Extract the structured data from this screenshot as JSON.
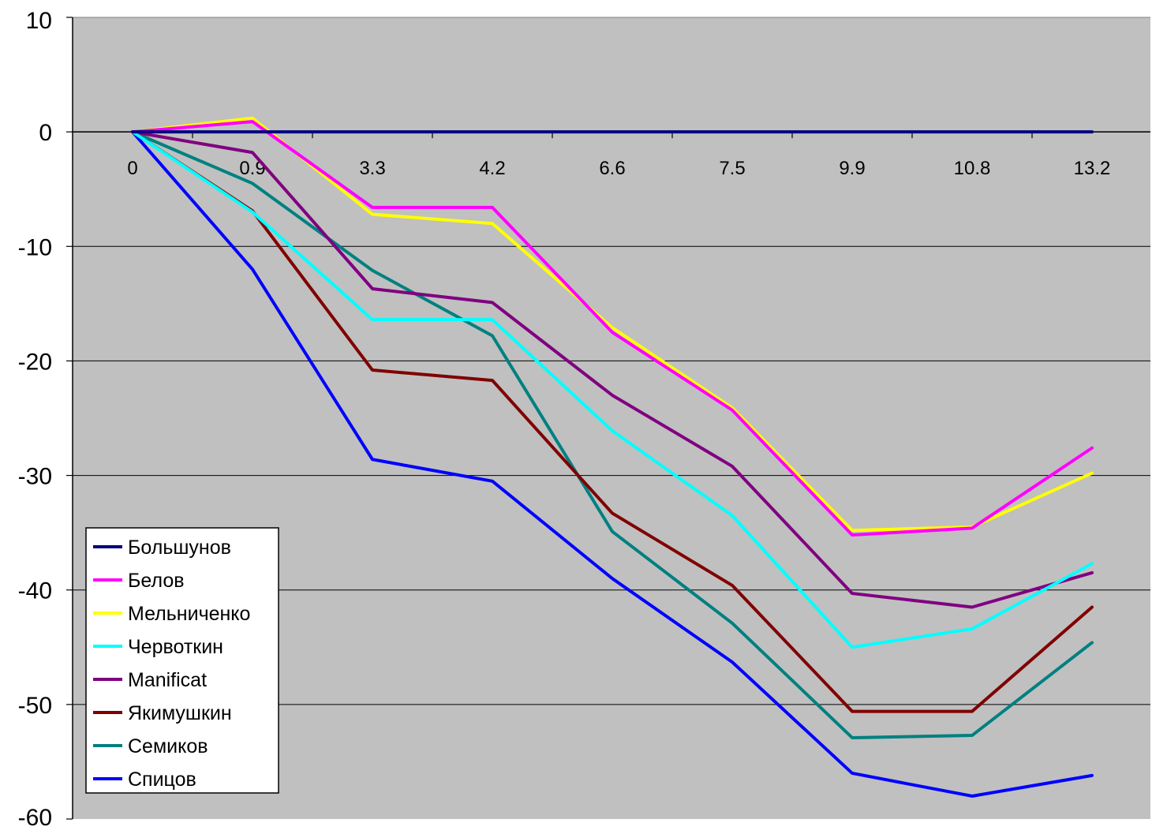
{
  "chart_data": {
    "type": "line",
    "title": "",
    "xlabel": "",
    "ylabel": "",
    "categories": [
      "0",
      "0.9",
      "3.3",
      "4.2",
      "6.6",
      "7.5",
      "9.9",
      "10.8",
      "13.2"
    ],
    "ylim": [
      -60,
      10
    ],
    "yticks": [
      10,
      0,
      -10,
      -20,
      -30,
      -40,
      -50,
      -60
    ],
    "grid": true,
    "legend_position": "bottom-left",
    "plot_background": "#C0C0C0",
    "series": [
      {
        "name": "Большунов",
        "color": "#000080",
        "values": [
          0,
          0,
          0,
          0,
          0,
          0,
          0,
          0,
          0
        ]
      },
      {
        "name": "Белов",
        "color": "#FF00FF",
        "values": [
          0,
          0.9,
          -6.6,
          -6.6,
          -17.5,
          -24.3,
          -35.2,
          -34.6,
          -27.6
        ]
      },
      {
        "name": "Мельниченко",
        "color": "#FFFF00",
        "values": [
          0,
          1.2,
          -7.2,
          -8.0,
          -17.1,
          -24.1,
          -34.8,
          -34.5,
          -29.8
        ]
      },
      {
        "name": "Червоткин",
        "color": "#00FFFF",
        "values": [
          0,
          -7.0,
          -16.4,
          -16.4,
          -26.1,
          -33.5,
          -45.0,
          -43.4,
          -37.7
        ]
      },
      {
        "name": "Manificat",
        "color": "#800080",
        "values": [
          0,
          -1.8,
          -13.7,
          -14.9,
          -23.0,
          -29.2,
          -40.3,
          -41.5,
          -38.5
        ]
      },
      {
        "name": "Якимушкин",
        "color": "#800000",
        "values": [
          0,
          -6.9,
          -20.8,
          -21.7,
          -33.3,
          -39.6,
          -50.6,
          -50.6,
          -41.5
        ]
      },
      {
        "name": "Семиков",
        "color": "#008080",
        "values": [
          0,
          -4.5,
          -12.1,
          -17.8,
          -34.9,
          -42.9,
          -52.9,
          -52.7,
          -44.6
        ]
      },
      {
        "name": "Спицов",
        "color": "#0000FF",
        "values": [
          0,
          -12.0,
          -28.6,
          -30.5,
          -39.0,
          -46.3,
          -56.0,
          -58.0,
          -56.2
        ]
      }
    ]
  }
}
